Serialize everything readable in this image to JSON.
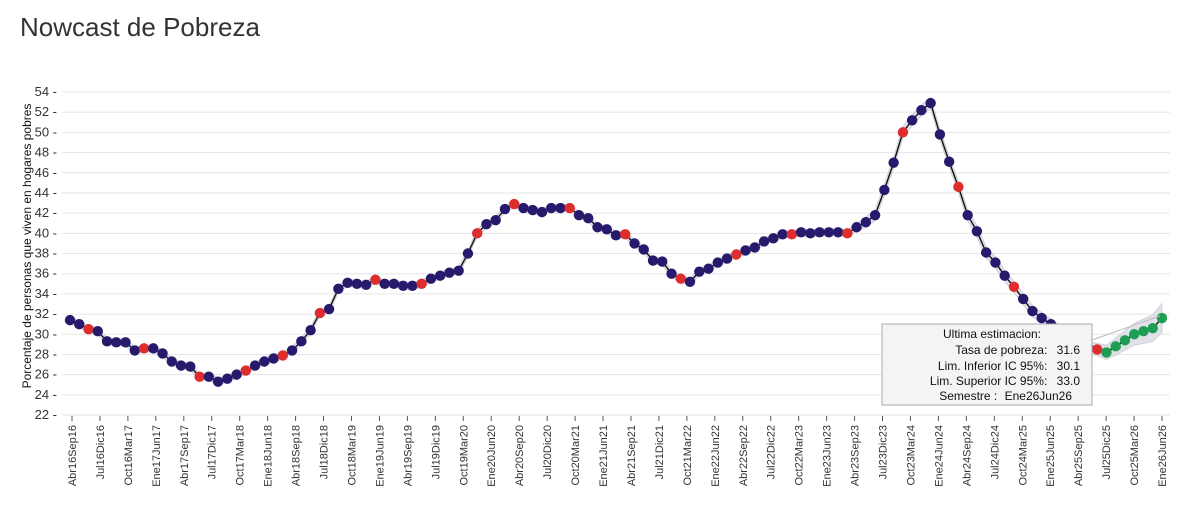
{
  "page": {
    "title": "Nowcast de Pobreza"
  },
  "chart_data": {
    "type": "line",
    "title": "Nowcast de Pobreza",
    "ylabel": "Porcentaje de personas que viven en hogares pobres",
    "xlabel": "",
    "ylim": [
      22,
      55
    ],
    "yticks": [
      22,
      24,
      26,
      28,
      30,
      32,
      34,
      36,
      38,
      40,
      42,
      44,
      46,
      48,
      50,
      52,
      54
    ],
    "xtick_labels": [
      "Abr16Sep16",
      "Jul16Dic16",
      "Oct16Mar17",
      "Ene17Jun17",
      "Abr17Sep17",
      "Jul17Dic17",
      "Oct17Mar18",
      "Ene18Jun18",
      "Abr18Sep18",
      "Jul18Dic18",
      "Oct18Mar19",
      "Ene19Jun19",
      "Abr19Sep19",
      "Jul19Dic19",
      "Oct19Mar20",
      "Ene20Jun20",
      "Abr20Sep20",
      "Jul20Dic20",
      "Oct20Mar21",
      "Ene21Jun21",
      "Abr21Sep21",
      "Jul21Dic21",
      "Oct21Mar22",
      "Ene22Jun22",
      "Abr22Sep22",
      "Jul22Dic22",
      "Oct22Mar23",
      "Ene23Jun23",
      "Abr23Sep23",
      "Jul23Dic23",
      "Oct23Mar24",
      "Ene24Jun24",
      "Abr24Sep24",
      "Jul24Dic24",
      "Oct24Mar25",
      "Ene25Jun25",
      "Abr25Sep25",
      "Jul25Dic25",
      "Oct25Mar26",
      "Ene26Jun26"
    ],
    "values": [
      31.4,
      31.0,
      30.5,
      30.3,
      29.3,
      29.2,
      29.2,
      28.4,
      28.6,
      28.6,
      28.1,
      27.3,
      26.9,
      26.8,
      25.8,
      25.8,
      25.3,
      25.6,
      26.0,
      26.4,
      26.9,
      27.3,
      27.6,
      27.9,
      28.4,
      29.3,
      30.4,
      32.1,
      32.5,
      34.5,
      35.1,
      35.0,
      34.9,
      35.4,
      35.0,
      35.0,
      34.8,
      34.8,
      35.0,
      35.5,
      35.8,
      36.1,
      36.3,
      38.0,
      40.0,
      40.9,
      41.3,
      42.4,
      42.9,
      42.5,
      42.3,
      42.1,
      42.5,
      42.5,
      42.5,
      41.8,
      41.5,
      40.6,
      40.4,
      39.8,
      39.9,
      39.0,
      38.4,
      37.3,
      37.2,
      36.0,
      35.5,
      35.2,
      36.2,
      36.5,
      37.1,
      37.5,
      37.9,
      38.3,
      38.6,
      39.2,
      39.5,
      39.9,
      39.9,
      40.1,
      40.0,
      40.1,
      40.1,
      40.1,
      40.0,
      40.6,
      41.1,
      41.8,
      44.3,
      47.0,
      50.0,
      51.2,
      52.2,
      52.9,
      49.8,
      47.1,
      44.6,
      41.8,
      40.2,
      38.1,
      37.1,
      35.8,
      34.7,
      33.5,
      32.3,
      31.6,
      31.0,
      30.3,
      29.6,
      29.0,
      28.7,
      28.5,
      28.2,
      28.8,
      29.4,
      30.0,
      30.3,
      30.6,
      31.6
    ],
    "type_codes": "bbrbbbbbrbbbbbrbbbbrbbbrbbbrbbbbbrbbbbrbbbbbrbbbrbbbbbrbbbbbrbbbbbrbbbbbrbbbbbrbbbbbrbbbbbrbbbbbrbbbbbrbbbbbbbbrggggggg",
    "series_colors": {
      "estimacion": "#27196b",
      "observado": "#de2d2d",
      "nowcast": "#1e9e52"
    },
    "line_color": "#111111",
    "band_color": "#d9dbe3",
    "grid": true,
    "tooltip": {
      "title": "Ultima estimacion:",
      "lines": [
        {
          "label": "Tasa de pobreza:",
          "value": "31.6"
        },
        {
          "label": "Lim. Inferior IC 95%:",
          "value": "30.1"
        },
        {
          "label": "Lim. Superior IC 95%:",
          "value": "33.0"
        },
        {
          "label": "Semestre :",
          "value": "Ene26Jun26"
        }
      ]
    }
  }
}
